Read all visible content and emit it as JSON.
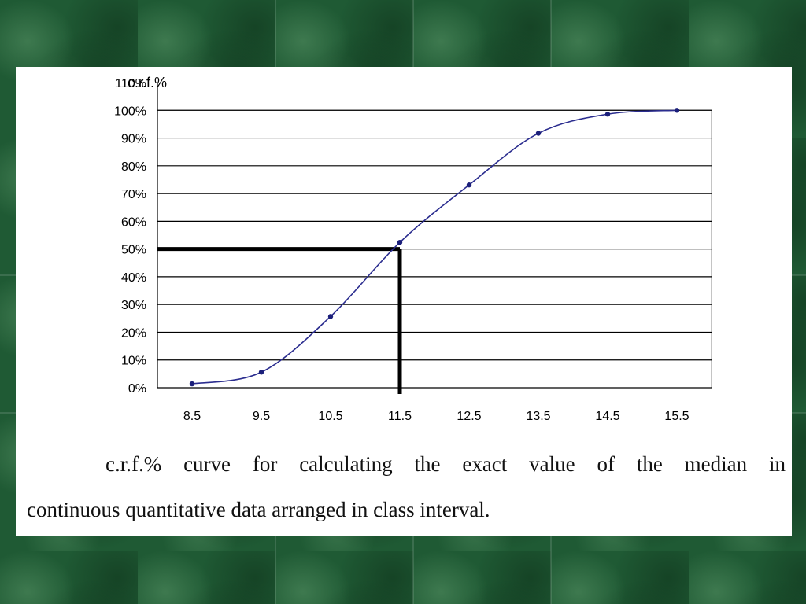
{
  "chart_data": {
    "type": "line",
    "title": "",
    "ylabel": "c.r.f.%",
    "xlabel": "",
    "x": [
      8.5,
      9.5,
      10.5,
      11.5,
      12.5,
      13.5,
      14.5,
      15.5
    ],
    "x_tick_labels": [
      "8.5",
      "9.5",
      "10.5",
      "11.5",
      "12.5",
      "13.5",
      "14.5",
      "15.5"
    ],
    "y_tick_labels": [
      "0%",
      "10%",
      "20%",
      "30%",
      "40%",
      "50%",
      "60%",
      "70%",
      "80%",
      "90%",
      "100%",
      "110%"
    ],
    "series": [
      {
        "values": [
          1.4,
          5.6,
          25.7,
          52.4,
          73.1,
          91.7,
          98.6,
          100
        ]
      }
    ],
    "ylim": [
      0,
      110
    ],
    "grid": true,
    "median_guide": {
      "x": 11.5,
      "y": 50
    },
    "colors": {
      "line": "#2b2d8f",
      "marker": "#1b1f7a",
      "grid": "#000000",
      "guide": "#000000"
    }
  },
  "caption": {
    "line1_words": [
      "c.r.f.%",
      "curve",
      "for",
      "calculating",
      "the",
      "exact",
      "value",
      "of",
      "the",
      "median",
      "in"
    ],
    "line2": "continuous quantitative data arranged in class interval."
  }
}
